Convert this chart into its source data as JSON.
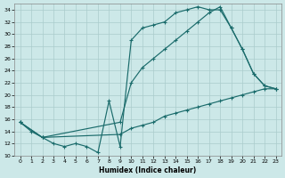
{
  "xlabel": "Humidex (Indice chaleur)",
  "bg_color": "#cce8e8",
  "grid_color": "#aacccc",
  "line_color": "#1a6b6b",
  "xlim": [
    -0.5,
    23.5
  ],
  "ylim": [
    10,
    35
  ],
  "xticks": [
    0,
    1,
    2,
    3,
    4,
    5,
    6,
    7,
    8,
    9,
    10,
    11,
    12,
    13,
    14,
    15,
    16,
    17,
    18,
    19,
    20,
    21,
    22,
    23
  ],
  "yticks": [
    10,
    12,
    14,
    16,
    18,
    20,
    22,
    24,
    26,
    28,
    30,
    32,
    34
  ],
  "line1_x": [
    0,
    1,
    2,
    3,
    4,
    5,
    6,
    7,
    8,
    9,
    10,
    11,
    12,
    13,
    14,
    15,
    16,
    17,
    18,
    19,
    20,
    21,
    22,
    23
  ],
  "line1_y": [
    15.5,
    14.0,
    13.0,
    12.0,
    11.5,
    12.0,
    11.5,
    10.5,
    19.0,
    11.5,
    29.0,
    31.0,
    31.5,
    32.0,
    33.5,
    34.0,
    34.5,
    34.0,
    34.0,
    31.0,
    27.5,
    23.5,
    21.5,
    21.0
  ],
  "line2_x": [
    0,
    2,
    9,
    10,
    11,
    12,
    13,
    14,
    15,
    16,
    17,
    18,
    19,
    20,
    21,
    22,
    23
  ],
  "line2_y": [
    15.5,
    13.0,
    15.5,
    22.0,
    24.5,
    26.0,
    27.5,
    29.0,
    30.5,
    32.0,
    33.5,
    34.5,
    31.0,
    27.5,
    23.5,
    21.5,
    21.0
  ],
  "line3_x": [
    0,
    2,
    9,
    10,
    11,
    12,
    13,
    14,
    15,
    16,
    17,
    18,
    19,
    20,
    21,
    22,
    23
  ],
  "line3_y": [
    15.5,
    13.0,
    13.5,
    14.5,
    15.0,
    15.5,
    16.5,
    17.0,
    17.5,
    18.0,
    18.5,
    19.0,
    19.5,
    20.0,
    20.5,
    21.0,
    21.0
  ]
}
